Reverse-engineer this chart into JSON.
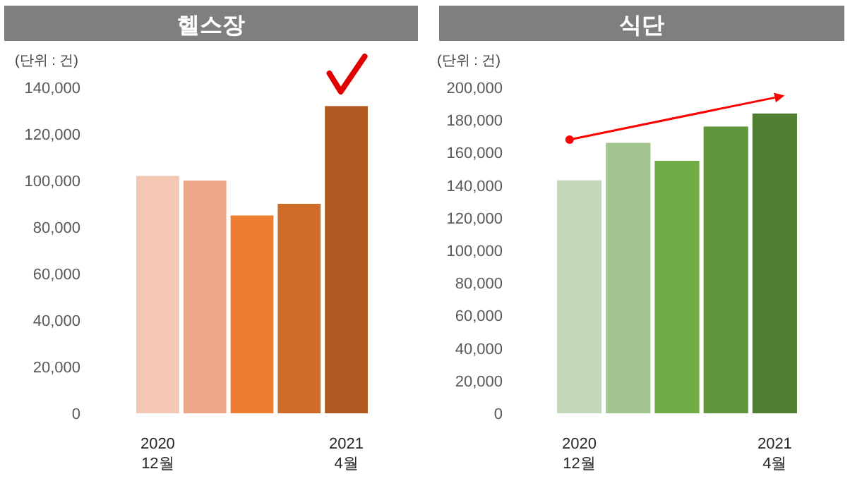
{
  "chart_data": [
    {
      "type": "bar",
      "title": "헬스장",
      "ylabel": "(단위 : 건)",
      "categories": [
        "2020\n12월",
        null,
        null,
        null,
        "2021\n4월"
      ],
      "values": [
        102000,
        100000,
        85000,
        90000,
        132000
      ],
      "colors": [
        "#f4c7b5",
        "#f0a88a",
        "#ed7d31",
        "#d06c2a",
        "#b05b22"
      ],
      "ylim": [
        0,
        140000
      ],
      "yticks": [
        {
          "value": 0,
          "label": "0"
        },
        {
          "value": 20000,
          "label": "20,000"
        },
        {
          "value": 40000,
          "label": "40,000"
        },
        {
          "value": 60000,
          "label": "60,000"
        },
        {
          "value": 80000,
          "label": "80,000"
        },
        {
          "value": 100000,
          "label": "100,000"
        },
        {
          "value": 120000,
          "label": "120,000"
        },
        {
          "value": 140000,
          "label": "140,000"
        }
      ]
    },
    {
      "type": "bar",
      "title": "식단",
      "ylabel": "(단위 : 건)",
      "categories": [
        "2020\n12월",
        null,
        null,
        null,
        "2021\n4월"
      ],
      "values": [
        143000,
        166000,
        155000,
        176000,
        184000
      ],
      "colors": [
        "#c3d7b9",
        "#a2c48f",
        "#70ad47",
        "#61973c",
        "#507e32"
      ],
      "ylim": [
        0,
        200000
      ],
      "yticks": [
        {
          "value": 0,
          "label": "0"
        },
        {
          "value": 20000,
          "label": "20,000"
        },
        {
          "value": 40000,
          "label": "40,000"
        },
        {
          "value": 60000,
          "label": "60,000"
        },
        {
          "value": 80000,
          "label": "80,000"
        },
        {
          "value": 100000,
          "label": "100,000"
        },
        {
          "value": 120000,
          "label": "120,000"
        },
        {
          "value": 140000,
          "label": "140,000"
        },
        {
          "value": 160000,
          "label": "160,000"
        },
        {
          "value": 180000,
          "label": "180,000"
        },
        {
          "value": 200000,
          "label": "200,000"
        }
      ]
    }
  ]
}
